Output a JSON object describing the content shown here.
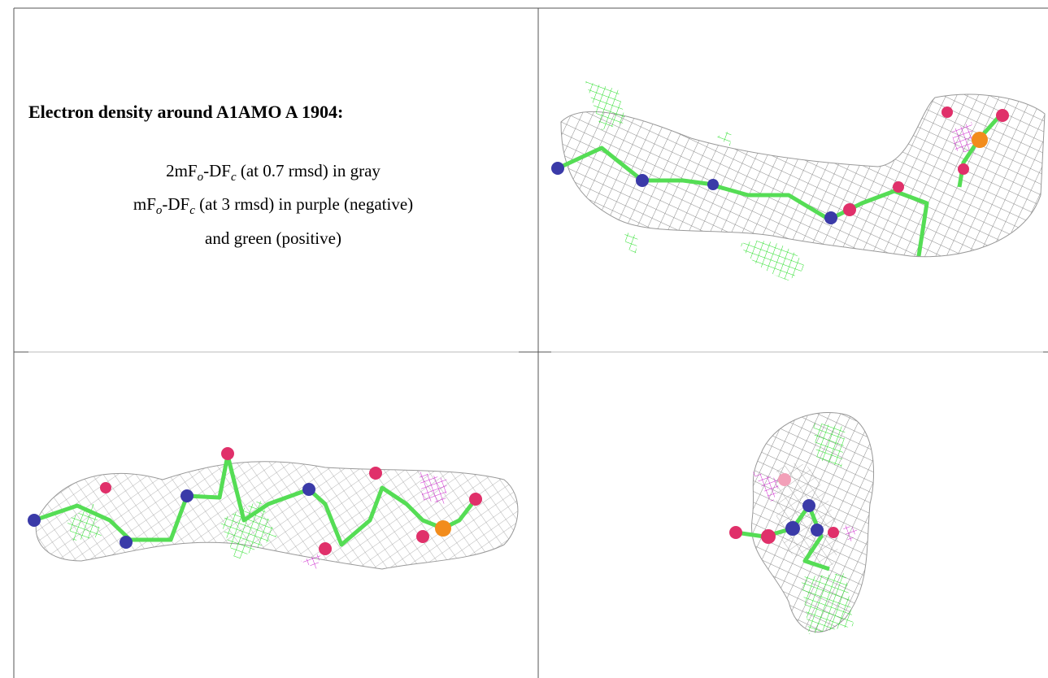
{
  "legend": {
    "title": "Electron density around A1AMO A 1904:",
    "lines": [
      [
        {
          "text": "2mF"
        },
        {
          "sub": "o"
        },
        {
          "text": "-DF"
        },
        {
          "sub": "c"
        },
        {
          "text": " (at 0.7 rmsd) in gray"
        }
      ],
      [
        {
          "text": "mF"
        },
        {
          "sub": "o"
        },
        {
          "text": "-DF"
        },
        {
          "sub": "c"
        },
        {
          "text": " (at 3 rmsd) in purple (negative)"
        }
      ],
      [
        {
          "text": "and green (positive)"
        }
      ]
    ]
  }
}
